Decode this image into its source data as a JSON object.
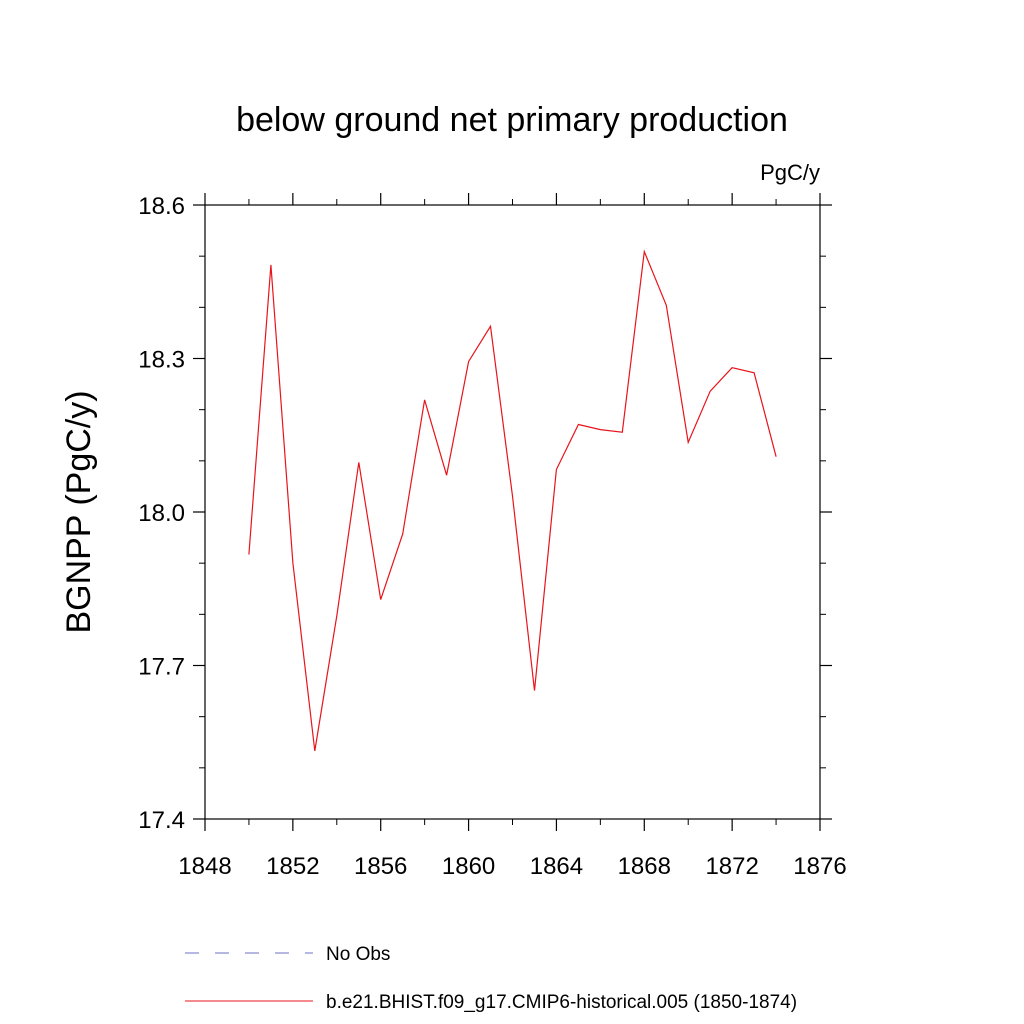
{
  "chart_data": {
    "type": "line",
    "title": "below ground net primary production",
    "units_label": "PgC/y",
    "ylabel": "BGNPP  (PgC/y)",
    "xlabel": "",
    "xlim": [
      1848,
      1876
    ],
    "ylim": [
      17.4,
      18.6
    ],
    "x_ticks": [
      1848,
      1852,
      1856,
      1860,
      1864,
      1868,
      1872,
      1876
    ],
    "x_tick_labels": [
      "1848",
      "1852",
      "1856",
      "1860",
      "1864",
      "1868",
      "1872",
      "1876"
    ],
    "y_ticks": [
      17.4,
      17.7,
      18.0,
      18.3,
      18.6
    ],
    "y_tick_labels": [
      "17.4",
      "17.7",
      "18.0",
      "18.3",
      "18.6"
    ],
    "x_minor_step": 2,
    "y_minor_step": 0.1,
    "grid": false,
    "series": [
      {
        "name": "b.e21.BHIST.f09_g17.CMIP6-historical.005 (1850-1874)",
        "color": "#e8141b",
        "style": "solid",
        "x": [
          1850,
          1851,
          1852,
          1853,
          1854,
          1855,
          1856,
          1857,
          1858,
          1859,
          1860,
          1861,
          1862,
          1863,
          1864,
          1865,
          1866,
          1867,
          1868,
          1869,
          1870,
          1871,
          1872,
          1873,
          1874
        ],
        "values": [
          17.917,
          18.483,
          17.9,
          17.533,
          17.797,
          18.097,
          17.829,
          17.957,
          18.219,
          18.072,
          18.294,
          18.363,
          18.031,
          17.651,
          18.083,
          18.171,
          18.161,
          18.156,
          18.509,
          18.404,
          18.136,
          18.236,
          18.282,
          18.272,
          18.108
        ]
      }
    ],
    "legend": [
      {
        "label": "No Obs",
        "color": "#6f6fc8",
        "style": "dashed"
      },
      {
        "label": "b.e21.BHIST.f09_g17.CMIP6-historical.005 (1850-1874)",
        "color": "#e8141b",
        "style": "solid"
      }
    ],
    "legend_placement": "bottom"
  }
}
